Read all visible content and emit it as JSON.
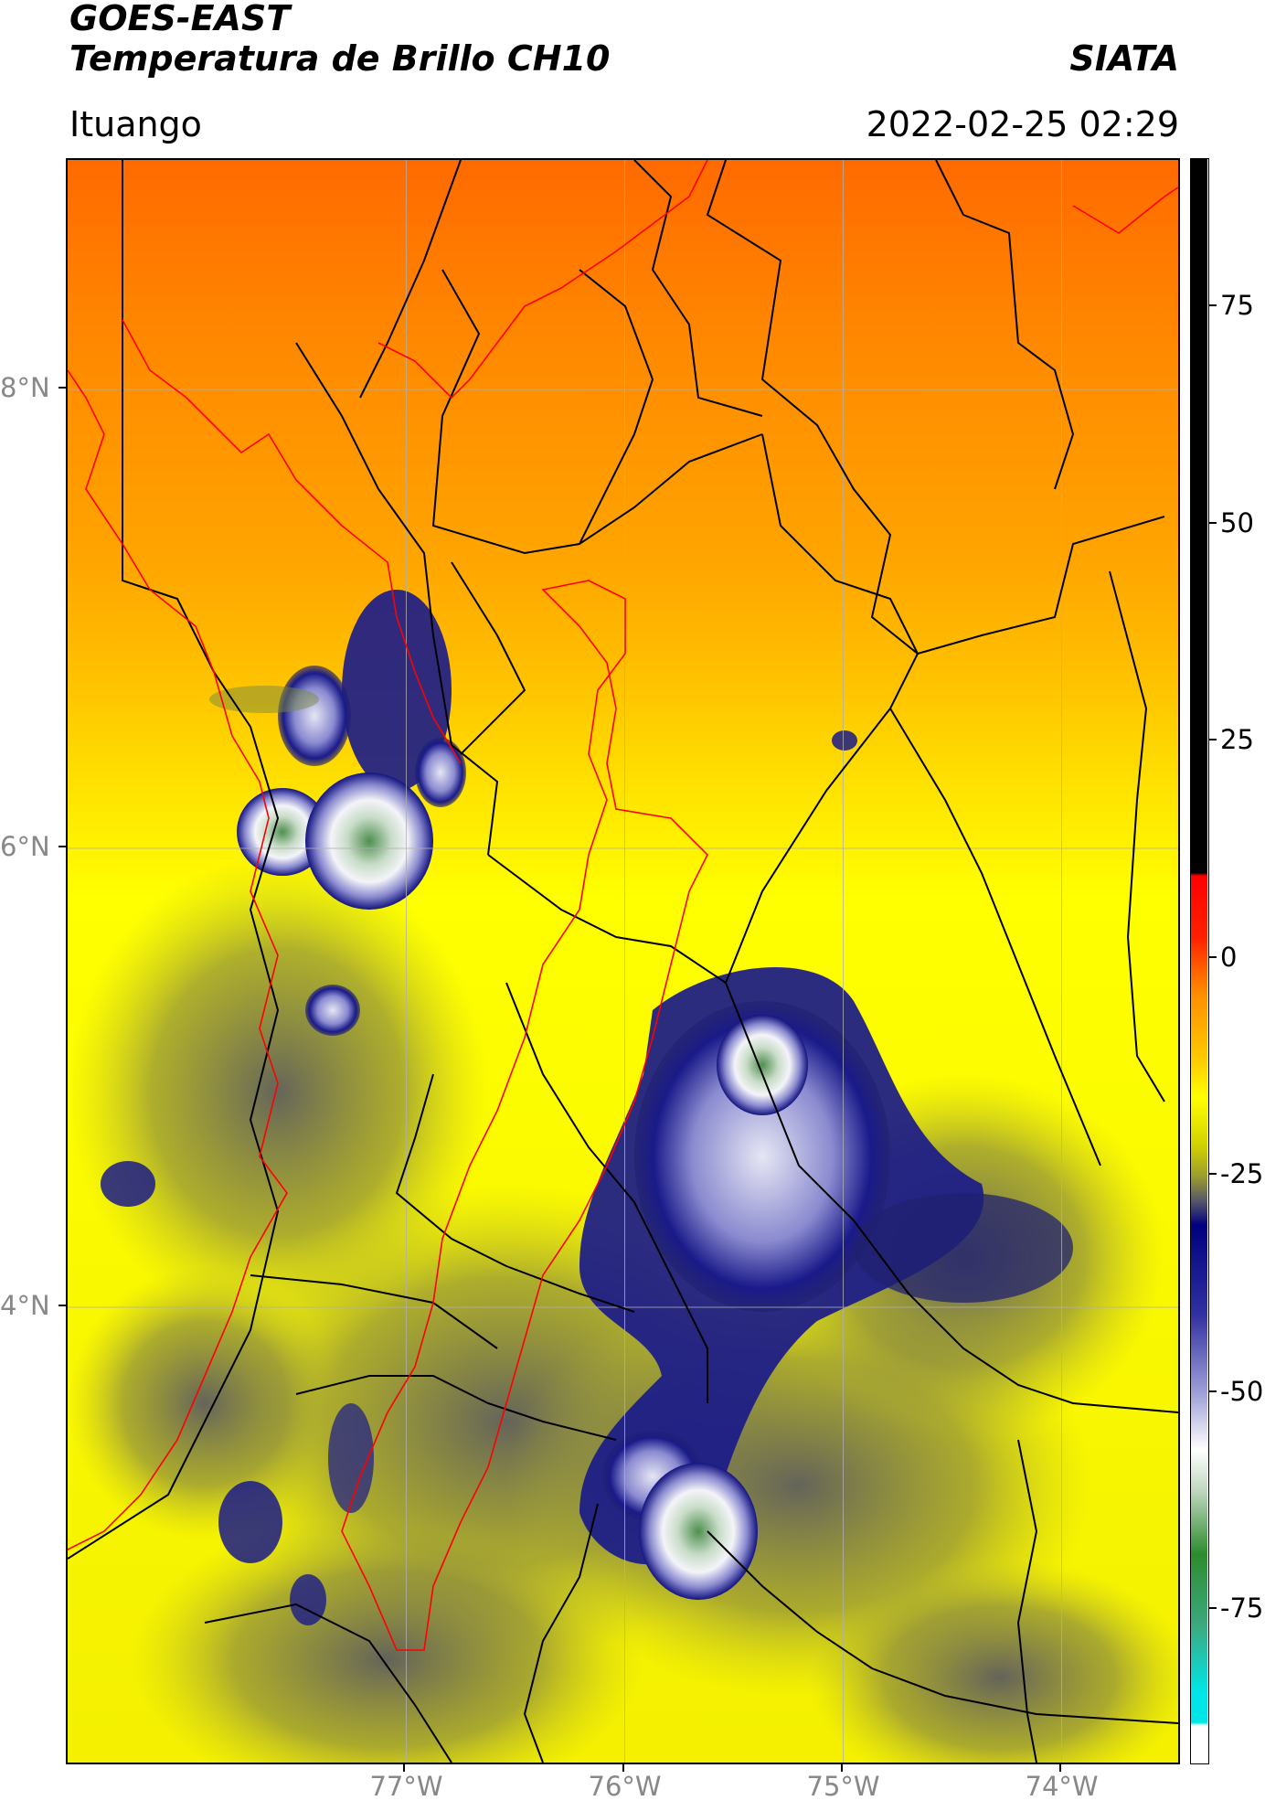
{
  "header": {
    "satellite": "GOES-EAST",
    "product": "Temperatura de Brillo CH10",
    "org": "SIATA",
    "region": "Ituango",
    "datetime": "2022-02-25 02:29"
  },
  "map": {
    "lat_range": [
      2.0,
      9.0
    ],
    "lon_range": [
      -78.55,
      -73.45
    ],
    "lat_ticks": [
      {
        "value": 8,
        "label": "8°N"
      },
      {
        "value": 6,
        "label": "6°N"
      },
      {
        "value": 4,
        "label": "4°N"
      }
    ],
    "lon_ticks": [
      {
        "value": -77,
        "label": "77°W"
      },
      {
        "value": -76,
        "label": "76°W"
      },
      {
        "value": -75,
        "label": "75°W"
      },
      {
        "value": -74,
        "label": "74°W"
      }
    ],
    "gridlines": true
  },
  "colorbar": {
    "units_min": -93,
    "units_max": 92,
    "ticks": [
      {
        "value": 75,
        "label": "75"
      },
      {
        "value": 50,
        "label": "50"
      },
      {
        "value": 25,
        "label": "25"
      },
      {
        "value": 0,
        "label": "0"
      },
      {
        "value": -25,
        "label": "-25"
      },
      {
        "value": -50,
        "label": "-50"
      },
      {
        "value": -75,
        "label": "-75"
      }
    ],
    "colors": {
      "high": "#000000",
      "red": "#ff0000",
      "orange": "#ff8c00",
      "yellow": "#ffff00",
      "olive": "#b5b520",
      "gray": "#5a5a6e",
      "navy": "#000080",
      "white": "#ffffff",
      "green": "#2e8b2e",
      "cyan": "#00e5e5"
    }
  }
}
